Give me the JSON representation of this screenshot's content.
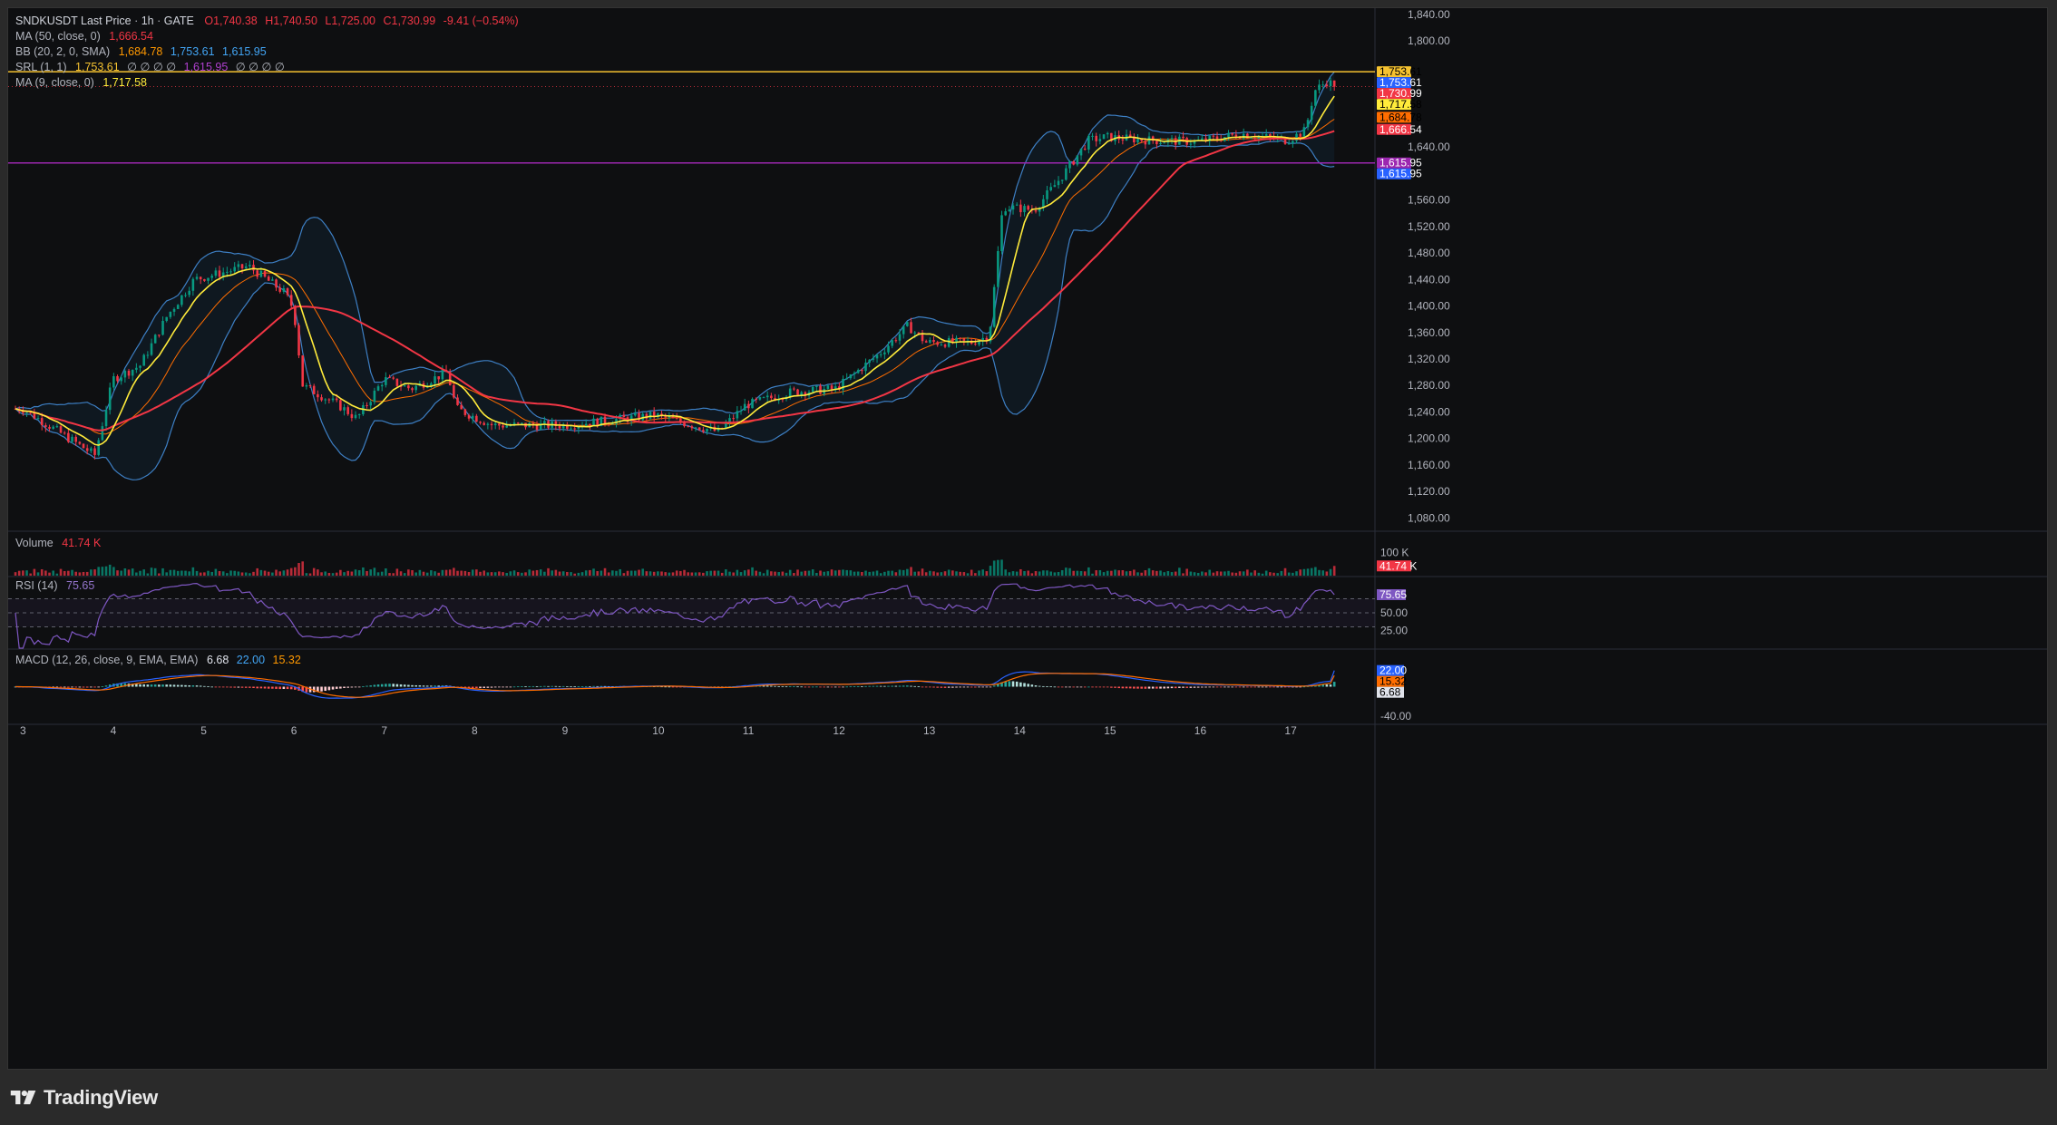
{
  "header": {
    "symbol": "SNDKUSDT Last Price",
    "interval": "1h",
    "exchange": "GATE",
    "open": "O1,740.38",
    "high": "H1,740.50",
    "low": "L1,725.00",
    "close": "C1,730.99",
    "change": "-9.41 (−0.54%)"
  },
  "indicators": {
    "ma50": {
      "label": "MA (50, close, 0)",
      "value": "1,666.54"
    },
    "bb": {
      "label": "BB (20, 2, 0, SMA)",
      "basis": "1,684.78",
      "upper": "1,753.61",
      "lower": "1,615.95"
    },
    "srl": {
      "label": "SRL (1, 1)",
      "v1": "1,753.61",
      "ph1": "∅ ∅ ∅ ∅",
      "v2": "1,615.95",
      "ph2": "∅ ∅ ∅ ∅"
    },
    "ma9": {
      "label": "MA (9, close, 0)",
      "value": "1,717.58"
    }
  },
  "volume_pane": {
    "label": "Volume",
    "value": "41.74 K",
    "axis_tick": "100 K",
    "tag": "41.74 K"
  },
  "rsi_pane": {
    "label": "RSI (14)",
    "value": "75.65",
    "ticks": [
      "50.00",
      "25.00"
    ],
    "tag": "75.65"
  },
  "macd_pane": {
    "label": "MACD (12, 26, close, 9, EMA, EMA)",
    "hist": "6.68",
    "macd": "22.00",
    "signal": "15.32",
    "tick": "-40.00"
  },
  "price_axis": {
    "ticks": [
      "1,840.00",
      "1,800.00",
      "1,640.00",
      "1,560.00",
      "1,520.00",
      "1,480.00",
      "1,440.00",
      "1,400.00",
      "1,360.00",
      "1,320.00",
      "1,280.00",
      "1,240.00",
      "1,200.00",
      "1,160.00",
      "1,120.00",
      "1,080.00"
    ],
    "tags": [
      {
        "text": "1,753.61",
        "bg": "#f5c230",
        "fg": "#000000"
      },
      {
        "text": "1,753.61",
        "bg": "#2962ff",
        "fg": "#ffffff"
      },
      {
        "text": "1,730.99",
        "bg": "#f23645",
        "fg": "#ffffff"
      },
      {
        "text": "1,717.58",
        "bg": "#ffeb3b",
        "fg": "#000000"
      },
      {
        "text": "1,684.78",
        "bg": "#ff6d00",
        "fg": "#000000"
      },
      {
        "text": "1,666.54",
        "bg": "#f23645",
        "fg": "#ffffff"
      },
      {
        "text": "1,615.95",
        "bg": "#9c27b0",
        "fg": "#ffffff"
      },
      {
        "text": "1,615.95",
        "bg": "#2962ff",
        "fg": "#ffffff"
      }
    ]
  },
  "time_axis": {
    "ticks": [
      "3",
      "4",
      "5",
      "6",
      "7",
      "8",
      "9",
      "10",
      "11",
      "12",
      "13",
      "14",
      "15",
      "16",
      "17"
    ]
  },
  "colors": {
    "up": "#089981",
    "down": "#f23645",
    "ma9": "#ffeb3b",
    "ma50": "#f23645",
    "bb_basis": "#ff6d00",
    "bb_band": "#2962ff",
    "srl_upper": "#f5c230",
    "srl_lower": "#9c27b0",
    "rsi": "#7e57c2"
  },
  "branding": {
    "logo_text": "TradingView",
    "logo_icon": "tradingview-logo-icon"
  },
  "chart_data": {
    "type": "candlestick",
    "title": "SNDKUSDT Last Price · 1h · GATE",
    "x_labels": [
      "3",
      "4",
      "5",
      "6",
      "7",
      "8",
      "9",
      "10",
      "11",
      "12",
      "13",
      "14",
      "15",
      "16",
      "17"
    ],
    "ylim": [
      1060,
      1850
    ],
    "ohlc_keypoints_close": [
      [
        "3",
        1245
      ],
      [
        "3.8",
        1175
      ],
      [
        "4",
        1290
      ],
      [
        "4.3",
        1310
      ],
      [
        "4.6",
        1385
      ],
      [
        "4.9",
        1440
      ],
      [
        "5.5",
        1460
      ],
      [
        "5.9",
        1420
      ],
      [
        "6.0",
        1395
      ],
      [
        "6.1",
        1280
      ],
      [
        "6.5",
        1250
      ],
      [
        "6.7",
        1230
      ],
      [
        "7.0",
        1290
      ],
      [
        "7.3",
        1275
      ],
      [
        "7.7",
        1300
      ],
      [
        "7.8",
        1245
      ],
      [
        "8.2",
        1220
      ],
      [
        "9",
        1220
      ],
      [
        "10",
        1235
      ],
      [
        "10.7",
        1210
      ],
      [
        "11",
        1250
      ],
      [
        "11.5",
        1270
      ],
      [
        "12",
        1275
      ],
      [
        "12.5",
        1330
      ],
      [
        "12.8",
        1370
      ],
      [
        "13",
        1345
      ],
      [
        "13.5",
        1345
      ],
      [
        "13.7",
        1355
      ],
      [
        "13.85",
        1550
      ],
      [
        "14.2",
        1545
      ],
      [
        "14.5",
        1595
      ],
      [
        "14.8",
        1650
      ],
      [
        "15",
        1655
      ],
      [
        "15.5",
        1650
      ],
      [
        "16",
        1648
      ],
      [
        "16.5",
        1660
      ],
      [
        "17",
        1650
      ],
      [
        "17.2",
        1665
      ],
      [
        "17.3",
        1725
      ],
      [
        "17.45",
        1740
      ],
      [
        "17.52",
        1730.99
      ]
    ],
    "last": {
      "open": 1740.38,
      "high": 1740.5,
      "low": 1725.0,
      "close": 1730.99
    },
    "overlays": {
      "ma50_last": 1666.54,
      "ma9_last": 1717.58,
      "bb_upper_last": 1753.61,
      "bb_basis_last": 1684.78,
      "bb_lower_last": 1615.95,
      "srl_upper": 1753.61,
      "srl_lower": 1615.95
    },
    "volume_last": 41740,
    "rsi_last": 75.65,
    "macd_last": {
      "macd": 22.0,
      "signal": 15.32,
      "histogram": 6.68
    }
  }
}
